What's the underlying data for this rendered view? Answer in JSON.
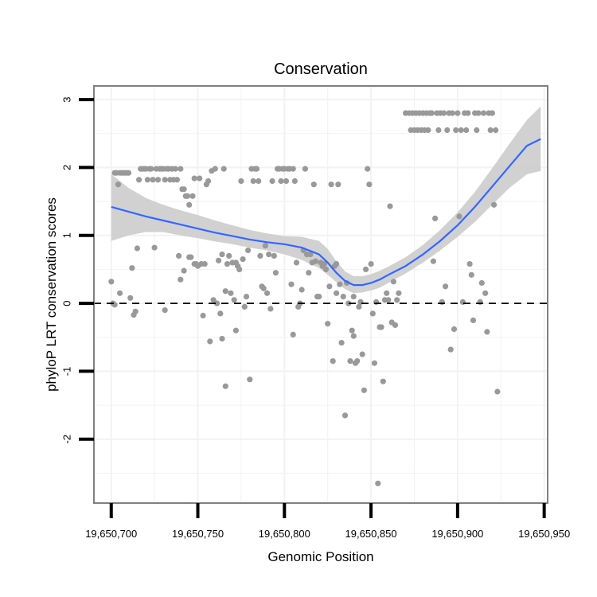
{
  "chart_data": {
    "type": "scatter",
    "title": "Conservation",
    "xlabel": "Genomic Position",
    "ylabel": "phyloP LRT conservation scores",
    "xlim": [
      19650690,
      19650952
    ],
    "ylim": [
      -2.94,
      3.2
    ],
    "x_ticks": [
      19650700,
      19650750,
      19650800,
      19650850,
      19650900,
      19650950
    ],
    "x_tick_labels": [
      "19,650,700",
      "19,650,750",
      "19,650,800",
      "19,650,850",
      "19,650,900",
      "19,650,950"
    ],
    "y_ticks": [
      -2,
      -1,
      0,
      1,
      2,
      3
    ],
    "y_tick_labels": [
      "-2",
      "-1",
      "0",
      "1",
      "2",
      "3"
    ],
    "reference_line": {
      "y": 0,
      "style": "dashed",
      "color": "#000000"
    },
    "grid": true,
    "colors": {
      "points": "#999999",
      "smooth_line": "#3366ff",
      "confidence_band": "#cccccc",
      "panel_border": "#808080",
      "grid": "#f2f2f2"
    },
    "series": [
      {
        "name": "phyloP LRT scores",
        "points": [
          [
            19650700,
            0.32
          ],
          [
            19650701,
            0.0
          ],
          [
            19650702,
            -0.02
          ],
          [
            19650702,
            1.92
          ],
          [
            19650703,
            1.92
          ],
          [
            19650704,
            1.75
          ],
          [
            19650705,
            1.92
          ],
          [
            19650705,
            0.15
          ],
          [
            19650706,
            1.92
          ],
          [
            19650707,
            1.92
          ],
          [
            19650708,
            1.92
          ],
          [
            19650709,
            1.92
          ],
          [
            19650710,
            1.92
          ],
          [
            19650711,
            0.08
          ],
          [
            19650712,
            0.52
          ],
          [
            19650713,
            -0.17
          ],
          [
            19650714,
            -0.12
          ],
          [
            19650715,
            0.81
          ],
          [
            19650716,
            1.82
          ],
          [
            19650717,
            1.98
          ],
          [
            19650718,
            1.98
          ],
          [
            19650719,
            1.98
          ],
          [
            19650720,
            1.98
          ],
          [
            19650721,
            1.82
          ],
          [
            19650722,
            1.98
          ],
          [
            19650723,
            1.98
          ],
          [
            19650724,
            1.82
          ],
          [
            19650725,
            0.82
          ],
          [
            19650726,
            1.98
          ],
          [
            19650727,
            1.82
          ],
          [
            19650728,
            1.98
          ],
          [
            19650729,
            1.98
          ],
          [
            19650730,
            1.98
          ],
          [
            19650731,
            1.82
          ],
          [
            19650731,
            -0.1
          ],
          [
            19650732,
            1.98
          ],
          [
            19650733,
            1.98
          ],
          [
            19650734,
            1.82
          ],
          [
            19650735,
            1.98
          ],
          [
            19650736,
            1.82
          ],
          [
            19650737,
            1.98
          ],
          [
            19650738,
            1.82
          ],
          [
            19650739,
            0.7
          ],
          [
            19650740,
            1.98
          ],
          [
            19650740,
            0.35
          ],
          [
            19650741,
            1.68
          ],
          [
            19650742,
            0.48
          ],
          [
            19650742,
            1.68
          ],
          [
            19650743,
            1.58
          ],
          [
            19650744,
            1.58
          ],
          [
            19650745,
            0.68
          ],
          [
            19650745,
            1.45
          ],
          [
            19650746,
            0.68
          ],
          [
            19650747,
            1.58
          ],
          [
            19650748,
            0.58
          ],
          [
            19650748,
            1.84
          ],
          [
            19650749,
            0.58
          ],
          [
            19650750,
            0.55
          ],
          [
            19650751,
            1.84
          ],
          [
            19650752,
            0.58
          ],
          [
            19650753,
            -0.18
          ],
          [
            19650754,
            0.58
          ],
          [
            19650755,
            1.75
          ],
          [
            19650756,
            1.8
          ],
          [
            19650757,
            -0.56
          ],
          [
            19650758,
            1.95
          ],
          [
            19650759,
            0.05
          ],
          [
            19650760,
            1.98
          ],
          [
            19650761,
            0.0
          ],
          [
            19650762,
            0.63
          ],
          [
            19650763,
            -0.15
          ],
          [
            19650764,
            -0.52
          ],
          [
            19650764,
            0.72
          ],
          [
            19650765,
            1.98
          ],
          [
            19650766,
            -1.22
          ],
          [
            19650766,
            0.18
          ],
          [
            19650767,
            0.58
          ],
          [
            19650768,
            0.7
          ],
          [
            19650769,
            0.15
          ],
          [
            19650770,
            0.6
          ],
          [
            19650771,
            0.05
          ],
          [
            19650772,
            0.6
          ],
          [
            19650772,
            -0.4
          ],
          [
            19650773,
            0.55
          ],
          [
            19650774,
            0.5
          ],
          [
            19650775,
            1.8
          ],
          [
            19650776,
            0.65
          ],
          [
            19650777,
            -0.05
          ],
          [
            19650778,
            0.1
          ],
          [
            19650779,
            0.78
          ],
          [
            19650780,
            -1.12
          ],
          [
            19650781,
            1.98
          ],
          [
            19650782,
            1.8
          ],
          [
            19650783,
            1.98
          ],
          [
            19650784,
            1.98
          ],
          [
            19650785,
            1.8
          ],
          [
            19650786,
            0.7
          ],
          [
            19650787,
            0.25
          ],
          [
            19650788,
            0.22
          ],
          [
            19650789,
            0.85
          ],
          [
            19650790,
            0.15
          ],
          [
            19650791,
            0.72
          ],
          [
            19650792,
            -0.08
          ],
          [
            19650793,
            1.8
          ],
          [
            19650794,
            0.7
          ],
          [
            19650795,
            0.45
          ],
          [
            19650796,
            1.98
          ],
          [
            19650797,
            1.98
          ],
          [
            19650798,
            1.8
          ],
          [
            19650799,
            1.98
          ],
          [
            19650800,
            1.98
          ],
          [
            19650801,
            1.8
          ],
          [
            19650802,
            1.98
          ],
          [
            19650803,
            1.98
          ],
          [
            19650804,
            0.28
          ],
          [
            19650805,
            1.98
          ],
          [
            19650805,
            -0.46
          ],
          [
            19650806,
            1.8
          ],
          [
            19650807,
            0.6
          ],
          [
            19650808,
            -0.05
          ],
          [
            19650809,
            0.0
          ],
          [
            19650810,
            0.2
          ],
          [
            19650811,
            0.78
          ],
          [
            19650812,
            1.98
          ],
          [
            19650813,
            0.72
          ],
          [
            19650814,
            0.45
          ],
          [
            19650815,
            0.72
          ],
          [
            19650816,
            0.6
          ],
          [
            19650817,
            1.75
          ],
          [
            19650818,
            0.62
          ],
          [
            19650819,
            0.1
          ],
          [
            19650820,
            0.1
          ],
          [
            19650821,
            0.6
          ],
          [
            19650822,
            0.55
          ],
          [
            19650823,
            0.58
          ],
          [
            19650824,
            0.5
          ],
          [
            19650825,
            -0.3
          ],
          [
            19650826,
            0.25
          ],
          [
            19650827,
            1.75
          ],
          [
            19650828,
            -0.85
          ],
          [
            19650829,
            0.55
          ],
          [
            19650830,
            0.58
          ],
          [
            19650830,
            0.15
          ],
          [
            19650831,
            1.75
          ],
          [
            19650832,
            0.28
          ],
          [
            19650833,
            -0.58
          ],
          [
            19650834,
            0.1
          ],
          [
            19650835,
            -1.65
          ],
          [
            19650836,
            0.3
          ],
          [
            19650837,
            0.0
          ],
          [
            19650838,
            -0.85
          ],
          [
            19650839,
            -0.4
          ],
          [
            19650840,
            0.1
          ],
          [
            19650840,
            -0.48
          ],
          [
            19650841,
            -0.88
          ],
          [
            19650842,
            -0.85
          ],
          [
            19650843,
            -0.05
          ],
          [
            19650844,
            0.02
          ],
          [
            19650845,
            -0.75
          ],
          [
            19650846,
            -1.28
          ],
          [
            19650847,
            0.5
          ],
          [
            19650848,
            1.98
          ],
          [
            19650849,
            1.75
          ],
          [
            19650850,
            0.58
          ],
          [
            19650851,
            -0.15
          ],
          [
            19650852,
            -0.88
          ],
          [
            19650853,
            0.02
          ],
          [
            19650854,
            -2.65
          ],
          [
            19650855,
            -0.35
          ],
          [
            19650856,
            -0.35
          ],
          [
            19650857,
            -1.15
          ],
          [
            19650858,
            0.05
          ],
          [
            19650859,
            0.15
          ],
          [
            19650860,
            0.05
          ],
          [
            19650861,
            1.43
          ],
          [
            19650862,
            -0.28
          ],
          [
            19650863,
            0.32
          ],
          [
            19650864,
            -0.32
          ],
          [
            19650865,
            0.05
          ],
          [
            19650866,
            0.15
          ],
          [
            19650870,
            2.8
          ],
          [
            19650872,
            2.8
          ],
          [
            19650873,
            2.55
          ],
          [
            19650874,
            2.8
          ],
          [
            19650875,
            2.55
          ],
          [
            19650876,
            2.8
          ],
          [
            19650877,
            2.55
          ],
          [
            19650878,
            2.8
          ],
          [
            19650879,
            2.55
          ],
          [
            19650880,
            2.8
          ],
          [
            19650881,
            2.55
          ],
          [
            19650882,
            2.8
          ],
          [
            19650883,
            2.55
          ],
          [
            19650884,
            2.8
          ],
          [
            19650885,
            2.8
          ],
          [
            19650886,
            0.62
          ],
          [
            19650887,
            1.25
          ],
          [
            19650888,
            2.8
          ],
          [
            19650889,
            2.55
          ],
          [
            19650890,
            2.8
          ],
          [
            19650891,
            0.02
          ],
          [
            19650892,
            2.8
          ],
          [
            19650893,
            0.25
          ],
          [
            19650894,
            2.55
          ],
          [
            19650895,
            2.8
          ],
          [
            19650896,
            -0.68
          ],
          [
            19650897,
            2.8
          ],
          [
            19650898,
            -0.38
          ],
          [
            19650899,
            2.55
          ],
          [
            19650900,
            2.8
          ],
          [
            19650901,
            1.28
          ],
          [
            19650902,
            2.55
          ],
          [
            19650903,
            0.02
          ],
          [
            19650904,
            2.8
          ],
          [
            19650905,
            2.55
          ],
          [
            19650906,
            2.8
          ],
          [
            19650907,
            0.58
          ],
          [
            19650908,
            0.42
          ],
          [
            19650909,
            -0.25
          ],
          [
            19650910,
            2.8
          ],
          [
            19650911,
            2.55
          ],
          [
            19650912,
            2.8
          ],
          [
            19650913,
            0.02
          ],
          [
            19650914,
            0.3
          ],
          [
            19650915,
            2.8
          ],
          [
            19650916,
            0.15
          ],
          [
            19650917,
            -0.42
          ],
          [
            19650918,
            2.8
          ],
          [
            19650919,
            2.55
          ],
          [
            19650920,
            2.8
          ],
          [
            19650921,
            1.45
          ],
          [
            19650922,
            2.55
          ],
          [
            19650923,
            -1.3
          ]
        ]
      },
      {
        "name": "loess fit",
        "x": [
          19650700,
          19650710,
          19650720,
          19650730,
          19650740,
          19650750,
          19650760,
          19650770,
          19650780,
          19650790,
          19650800,
          19650810,
          19650820,
          19650825,
          19650830,
          19650835,
          19650840,
          19650845,
          19650850,
          19650855,
          19650860,
          19650870,
          19650880,
          19650890,
          19650900,
          19650910,
          19650920,
          19650930,
          19650940,
          19650948
        ],
        "y": [
          1.42,
          1.35,
          1.28,
          1.22,
          1.16,
          1.1,
          1.04,
          0.99,
          0.94,
          0.9,
          0.87,
          0.82,
          0.72,
          0.6,
          0.45,
          0.33,
          0.27,
          0.27,
          0.3,
          0.35,
          0.42,
          0.55,
          0.72,
          0.92,
          1.15,
          1.42,
          1.72,
          2.02,
          2.32,
          2.42
        ],
        "lower": [
          0.92,
          1.0,
          1.05,
          1.05,
          1.0,
          0.96,
          0.91,
          0.87,
          0.82,
          0.78,
          0.72,
          0.64,
          0.52,
          0.42,
          0.31,
          0.21,
          0.15,
          0.16,
          0.19,
          0.23,
          0.3,
          0.44,
          0.6,
          0.78,
          0.98,
          1.2,
          1.45,
          1.7,
          1.9,
          1.95
        ],
        "upper": [
          1.9,
          1.7,
          1.55,
          1.45,
          1.37,
          1.3,
          1.22,
          1.15,
          1.08,
          1.03,
          0.99,
          0.98,
          0.92,
          0.8,
          0.62,
          0.47,
          0.4,
          0.4,
          0.43,
          0.48,
          0.54,
          0.68,
          0.86,
          1.08,
          1.34,
          1.64,
          1.99,
          2.35,
          2.7,
          2.9
        ]
      }
    ]
  }
}
